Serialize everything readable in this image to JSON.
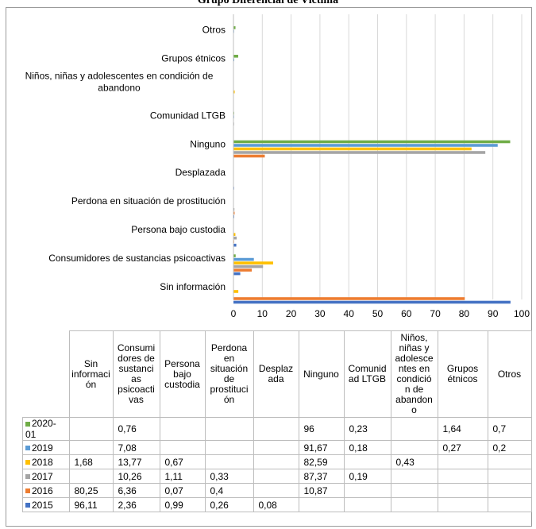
{
  "title": "Grupo Diferencial de Víctima",
  "chart_data": {
    "type": "bar",
    "orientation": "horizontal",
    "categories": [
      "Sin información",
      "Consumidores de sustancias psicoactivas",
      "Persona bajo custodia",
      "Perdona en situación de prostitución",
      "Desplazada",
      "Ninguno",
      "Comunidad LTGB",
      "Niños, niñas y adolescentes en condición de abandono",
      "Grupos étnicos",
      "Otros"
    ],
    "table_headers": [
      "Sin informaci ón",
      "Consumi dores de sustanci as psicoacti vas",
      "Persona bajo custodia",
      "Perdona en situación de prostituci ón",
      "Desplaz ada",
      "Ninguno",
      "Comunid ad LTGB",
      "Niños, niñas y adolesce ntes en condició n de abandon o",
      "Grupos étnicos",
      "Otros"
    ],
    "xlim": [
      0,
      100
    ],
    "xticks": [
      "0",
      "10",
      "20",
      "30",
      "40",
      "50",
      "60",
      "70",
      "80",
      "90",
      "100"
    ],
    "grid": true,
    "series": [
      {
        "name": "2020-01",
        "color": "#70ad47",
        "values": [
          null,
          0.76,
          null,
          null,
          null,
          96,
          0.23,
          null,
          1.64,
          0.7
        ],
        "labels": [
          "",
          "0,76",
          "",
          "",
          "",
          "96",
          "0,23",
          "",
          "1,64",
          "0,7"
        ]
      },
      {
        "name": "2019",
        "color": "#5b9bd5",
        "values": [
          null,
          7.08,
          null,
          null,
          null,
          91.67,
          0.18,
          null,
          0.27,
          0.2
        ],
        "labels": [
          "",
          "7,08",
          "",
          "",
          "",
          "91,67",
          "0,18",
          "",
          "0,27",
          "0,2"
        ]
      },
      {
        "name": "2018",
        "color": "#ffc000",
        "values": [
          1.68,
          13.77,
          0.67,
          null,
          null,
          82.59,
          null,
          0.43,
          null,
          null
        ],
        "labels": [
          "1,68",
          "13,77",
          "0,67",
          "",
          "",
          "82,59",
          "",
          "0,43",
          "",
          ""
        ]
      },
      {
        "name": "2017",
        "color": "#a5a5a5",
        "values": [
          null,
          10.26,
          1.11,
          0.33,
          null,
          87.37,
          0.19,
          null,
          null,
          null
        ],
        "labels": [
          "",
          "10,26",
          "1,11",
          "0,33",
          "",
          "87,37",
          "0,19",
          "",
          "",
          ""
        ]
      },
      {
        "name": "2016",
        "color": "#ed7d31",
        "values": [
          80.25,
          6.36,
          0.07,
          0.4,
          null,
          10.87,
          null,
          null,
          null,
          null
        ],
        "labels": [
          "80,25",
          "6,36",
          "0,07",
          "0,4",
          "",
          "10,87",
          "",
          "",
          "",
          ""
        ]
      },
      {
        "name": "2015",
        "color": "#4472c4",
        "values": [
          96.11,
          2.36,
          0.99,
          0.26,
          0.08,
          null,
          null,
          null,
          null,
          null
        ],
        "labels": [
          "96,11",
          "2,36",
          "0,99",
          "0,26",
          "0,08",
          "",
          "",
          "",
          "",
          ""
        ]
      }
    ]
  }
}
